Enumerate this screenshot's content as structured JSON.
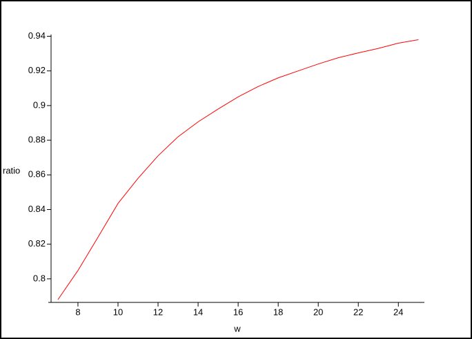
{
  "chart_data": {
    "type": "line",
    "x_label": "w",
    "y_label": "ratio",
    "x": [
      7,
      8,
      9,
      10,
      11,
      12,
      13,
      14,
      15,
      16,
      17,
      18,
      19,
      20,
      21,
      22,
      23,
      24,
      25
    ],
    "series": [
      {
        "name": "ratio",
        "color": "#ff0000",
        "values": [
          0.788,
          0.8048,
          0.824,
          0.8435,
          0.858,
          0.871,
          0.882,
          0.8906,
          0.898,
          0.905,
          0.911,
          0.916,
          0.92,
          0.924,
          0.9276,
          0.9304,
          0.933,
          0.936,
          0.938
        ]
      }
    ],
    "xlim": [
      6.52,
      25.3
    ],
    "ylim": [
      0.7864,
      0.941
    ],
    "xticks": [
      8,
      10,
      12,
      14,
      16,
      18,
      20,
      22,
      24
    ],
    "yticks": [
      0.8,
      0.82,
      0.84,
      0.86,
      0.88,
      0.9,
      0.92,
      0.94
    ]
  }
}
